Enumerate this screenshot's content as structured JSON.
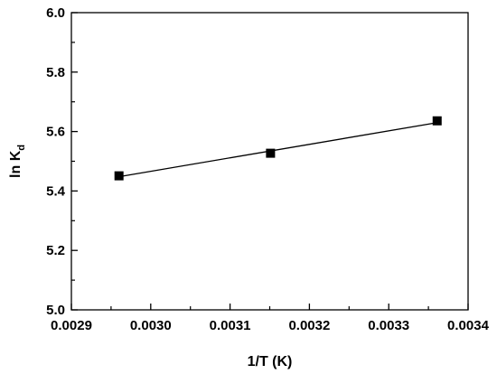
{
  "chart_data": {
    "type": "scatter",
    "xlabel": "1/T (K)",
    "ylabel": {
      "main": "ln K",
      "sub": "d"
    },
    "xlim": [
      0.0029,
      0.0034
    ],
    "ylim": [
      5.0,
      6.0
    ],
    "x_major_ticks": [
      "0.0029",
      "0.0030",
      "0.0031",
      "0.0032",
      "0.0033",
      "0.0034"
    ],
    "y_major_ticks": [
      "5.0",
      "5.2",
      "5.4",
      "5.6",
      "5.8",
      "6.0"
    ],
    "grid": false,
    "legend": "none",
    "series": [
      {
        "marker": "square",
        "color": "#000000",
        "x": [
          0.00296,
          0.003151,
          0.003361
        ],
        "y": [
          5.451,
          5.527,
          5.636
        ]
      }
    ],
    "fit_line": {
      "color": "#000000",
      "x": [
        0.00296,
        0.003361
      ],
      "y": [
        5.448,
        5.63
      ]
    }
  }
}
